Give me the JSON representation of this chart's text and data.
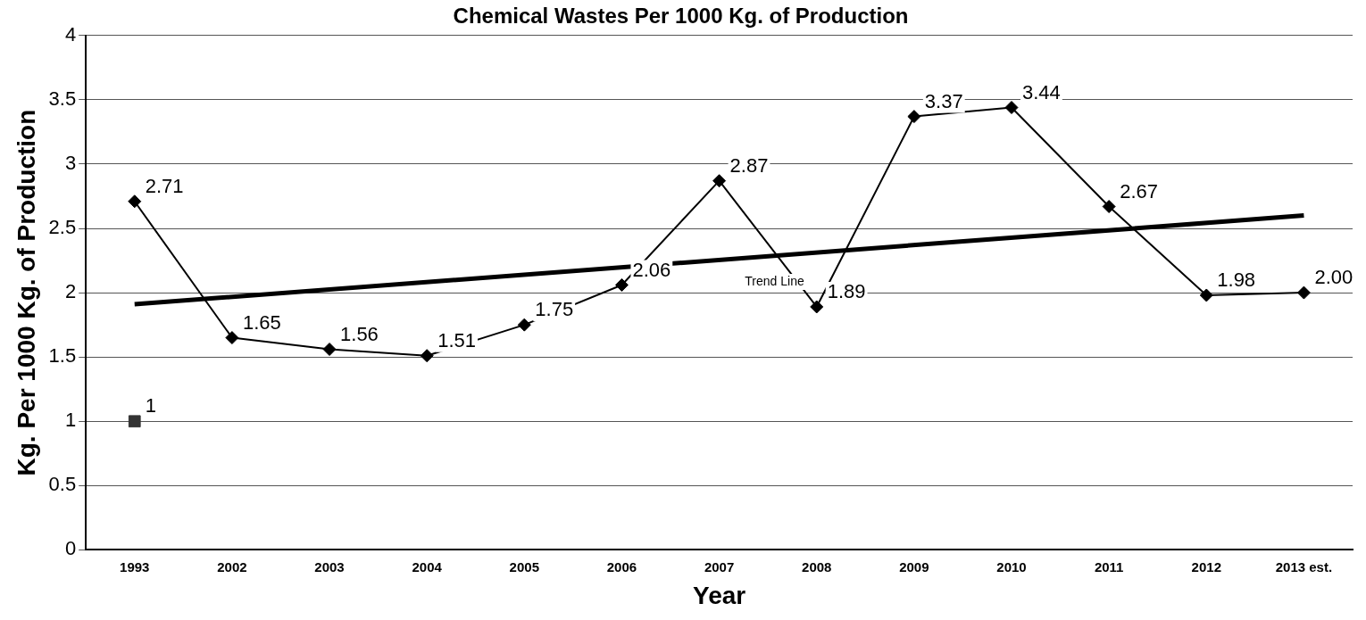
{
  "chart_data": {
    "type": "line",
    "title": "Chemical Wastes Per 1000 Kg. of Production",
    "xlabel": "Year",
    "ylabel": "Kg. Per 1000 Kg. of Production",
    "categories": [
      "1993",
      "2002",
      "2003",
      "2004",
      "2005",
      "2006",
      "2007",
      "2008",
      "2009",
      "2010",
      "2011",
      "2012",
      "2013 est."
    ],
    "ylim": [
      0,
      4
    ],
    "yticks": [
      0,
      0.5,
      1,
      1.5,
      2,
      2.5,
      3,
      3.5,
      4
    ],
    "grid": "y",
    "legend": false,
    "series": [
      {
        "color": "#000000",
        "marker": "diamond",
        "line_style": "solid",
        "values": [
          2.71,
          1.65,
          1.56,
          1.51,
          1.75,
          2.06,
          2.87,
          1.89,
          3.37,
          3.44,
          2.67,
          1.98,
          2.0
        ],
        "value_labels": [
          "2.71",
          "1.65",
          "1.56",
          "1.51",
          "1.75",
          "2.06",
          "2.87",
          "1.89",
          "3.37",
          "3.44",
          "2.67",
          "1.98",
          "2.00"
        ]
      },
      {
        "type": "scatter",
        "color": "#333333",
        "marker": "square",
        "values": [
          1,
          null,
          null,
          null,
          null,
          null,
          null,
          null,
          null,
          null,
          null,
          null,
          null
        ],
        "value_labels": [
          "1",
          null,
          null,
          null,
          null,
          null,
          null,
          null,
          null,
          null,
          null,
          null,
          null
        ]
      },
      {
        "name": "Trend Line",
        "color": "#000000",
        "marker": "none",
        "line_style": "solid",
        "values": [
          1.91,
          null,
          null,
          null,
          null,
          null,
          null,
          null,
          null,
          null,
          null,
          null,
          2.6
        ]
      }
    ]
  }
}
